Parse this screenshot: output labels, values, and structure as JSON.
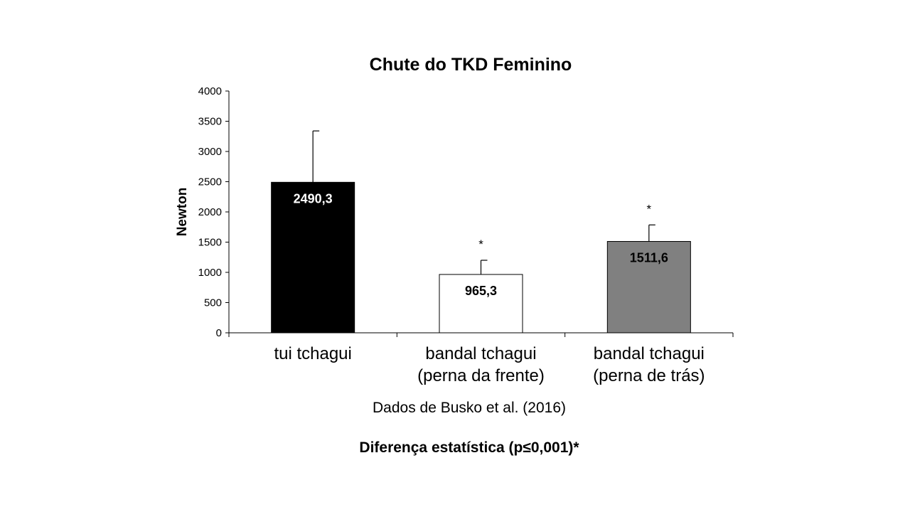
{
  "chart_data": {
    "type": "bar",
    "title": "Chute do TKD Feminino",
    "xlabel": "",
    "ylabel": "Newton",
    "ylim": [
      0,
      4000
    ],
    "yticks": [
      0,
      500,
      1000,
      1500,
      2000,
      2500,
      3000,
      3500,
      4000
    ],
    "grid": false,
    "categories": [
      [
        "tui tchagui"
      ],
      [
        "bandal tchagui",
        "(perna da frente)"
      ],
      [
        "bandal tchagui",
        "(perna de trás)"
      ]
    ],
    "values": [
      2490.3,
      965.3,
      1511.6
    ],
    "value_labels": [
      "2490,3",
      "965,3",
      "1511,6"
    ],
    "error_upper": [
      3340,
      1200,
      1785
    ],
    "bar_colors": [
      "#000000",
      "#ffffff",
      "#808080"
    ],
    "value_label_colors": [
      "#ffffff",
      "#000000",
      "#000000"
    ],
    "significance_markers": [
      "",
      "*",
      "*"
    ],
    "annotations": {
      "source": "Dados de Busko et al. (2016)",
      "significance": "Diferença estatística (p≤0,001)*"
    }
  }
}
